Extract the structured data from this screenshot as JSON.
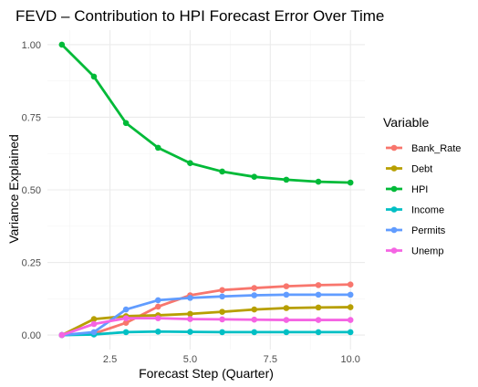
{
  "chart_data": {
    "type": "line",
    "title": "FEVD – Contribution to HPI Forecast Error Over Time",
    "xlabel": "Forecast Step (Quarter)",
    "ylabel": "Variance Explained",
    "xlim": [
      0.55,
      10.45
    ],
    "ylim": [
      -0.05,
      1.05
    ],
    "x_ticks": [
      2.5,
      5.0,
      7.5,
      10.0
    ],
    "x_tick_labels": [
      "2.5",
      "5.0",
      "7.5",
      "10.0"
    ],
    "y_ticks": [
      0,
      0.25,
      0.5,
      0.75,
      1.0
    ],
    "y_tick_labels": [
      "0.00",
      "0.25",
      "0.50",
      "0.75",
      "1.00"
    ],
    "grid": true,
    "legend_title": "Variable",
    "legend_position": "right",
    "x": [
      1,
      2,
      3,
      4,
      5,
      6,
      7,
      8,
      9,
      10
    ],
    "series": [
      {
        "name": "Bank_Rate",
        "color": "#F8766D",
        "values": [
          0.0,
          0.005,
          0.042,
          0.098,
          0.137,
          0.155,
          0.162,
          0.168,
          0.172,
          0.174
        ]
      },
      {
        "name": "Debt",
        "color": "#B79F00",
        "values": [
          0.0,
          0.055,
          0.065,
          0.068,
          0.073,
          0.08,
          0.088,
          0.093,
          0.095,
          0.096
        ]
      },
      {
        "name": "HPI",
        "color": "#00BA38",
        "values": [
          1.0,
          0.89,
          0.73,
          0.645,
          0.592,
          0.563,
          0.545,
          0.535,
          0.528,
          0.525
        ]
      },
      {
        "name": "Income",
        "color": "#00BFC4",
        "values": [
          0.0,
          0.002,
          0.01,
          0.012,
          0.011,
          0.01,
          0.01,
          0.01,
          0.01,
          0.01
        ]
      },
      {
        "name": "Permits",
        "color": "#619CFF",
        "values": [
          0.0,
          0.01,
          0.088,
          0.12,
          0.128,
          0.133,
          0.137,
          0.139,
          0.139,
          0.139
        ]
      },
      {
        "name": "Unemp",
        "color": "#F564E3",
        "values": [
          0.0,
          0.038,
          0.058,
          0.058,
          0.055,
          0.054,
          0.053,
          0.052,
          0.052,
          0.052
        ]
      }
    ]
  }
}
